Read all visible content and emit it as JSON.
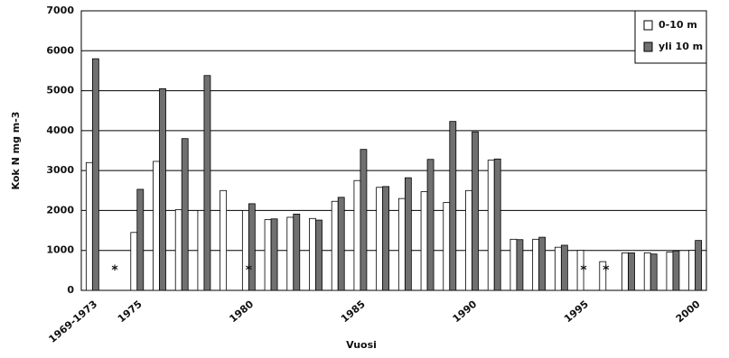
{
  "chart_data": {
    "type": "bar",
    "xlabel": "Vuosi",
    "ylabel": "Kok N mg m-3",
    "categories": [
      "1969-1973",
      null,
      "1975",
      null,
      null,
      null,
      null,
      "1980",
      null,
      null,
      null,
      null,
      "1985",
      null,
      null,
      null,
      null,
      "1990",
      null,
      null,
      null,
      null,
      "1995",
      null,
      null,
      null,
      null,
      "2000"
    ],
    "series": [
      {
        "name": "0-10 m",
        "color": "#ffffff",
        "values": [
          3200,
          null,
          1450,
          3230,
          2020,
          2000,
          2500,
          2000,
          1770,
          1830,
          1800,
          2230,
          2750,
          2580,
          2300,
          2470,
          2200,
          2500,
          3260,
          1280,
          1280,
          1080,
          1000,
          720,
          940,
          940,
          960,
          1000
        ]
      },
      {
        "name": "yli 10 m",
        "color": "#707070",
        "values": [
          5800,
          null,
          2530,
          5050,
          3800,
          5380,
          null,
          2170,
          1790,
          1910,
          1760,
          2330,
          3530,
          2600,
          2820,
          3280,
          4230,
          3970,
          3290,
          1270,
          1330,
          1130,
          null,
          null,
          940,
          910,
          990,
          1250
        ]
      }
    ],
    "annotations": [
      {
        "index": 1,
        "text": "*"
      },
      {
        "index": 7,
        "text": "*"
      },
      {
        "index": 22,
        "text": "*"
      },
      {
        "index": 23,
        "text": "*"
      }
    ],
    "ylim": [
      0,
      7000
    ],
    "yticks": [
      0,
      1000,
      2000,
      3000,
      4000,
      5000,
      6000,
      7000
    ],
    "grid": true,
    "legend": "upper right"
  }
}
